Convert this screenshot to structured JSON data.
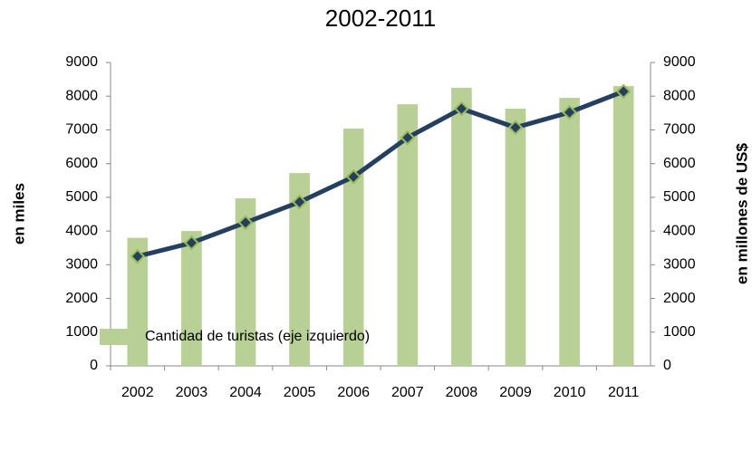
{
  "chart_data": {
    "type": "bar_line",
    "title": "2002-2011",
    "y_label": "en miles",
    "y2_label": "en millones de US$",
    "categories": [
      "2002",
      "2003",
      "2004",
      "2005",
      "2006",
      "2007",
      "2008",
      "2009",
      "2010",
      "2011"
    ],
    "series": [
      {
        "name": "Cantidad de turistas (eje izquierdo)",
        "type": "bar",
        "color": "#b8cf96",
        "axis": "y",
        "values": [
          3800,
          4000,
          4970,
          5720,
          7040,
          7760,
          8250,
          7630,
          7950,
          8300
        ]
      },
      {
        "type": "line",
        "color": "#243f60",
        "marker_color": "#9bbb59",
        "axis": "y2",
        "values": [
          3250,
          3650,
          4250,
          4860,
          5610,
          6770,
          7630,
          7070,
          7520,
          8140
        ]
      }
    ],
    "ylim": [
      0,
      9000
    ],
    "yticks": [
      0,
      1000,
      2000,
      3000,
      4000,
      5000,
      6000,
      7000,
      8000,
      9000
    ],
    "y2lim": [
      0,
      9000
    ],
    "y2ticks": [
      0,
      1000,
      2000,
      3000,
      4000,
      5000,
      6000,
      7000,
      8000,
      9000
    ],
    "grid": false,
    "legend": "bottom-left"
  }
}
